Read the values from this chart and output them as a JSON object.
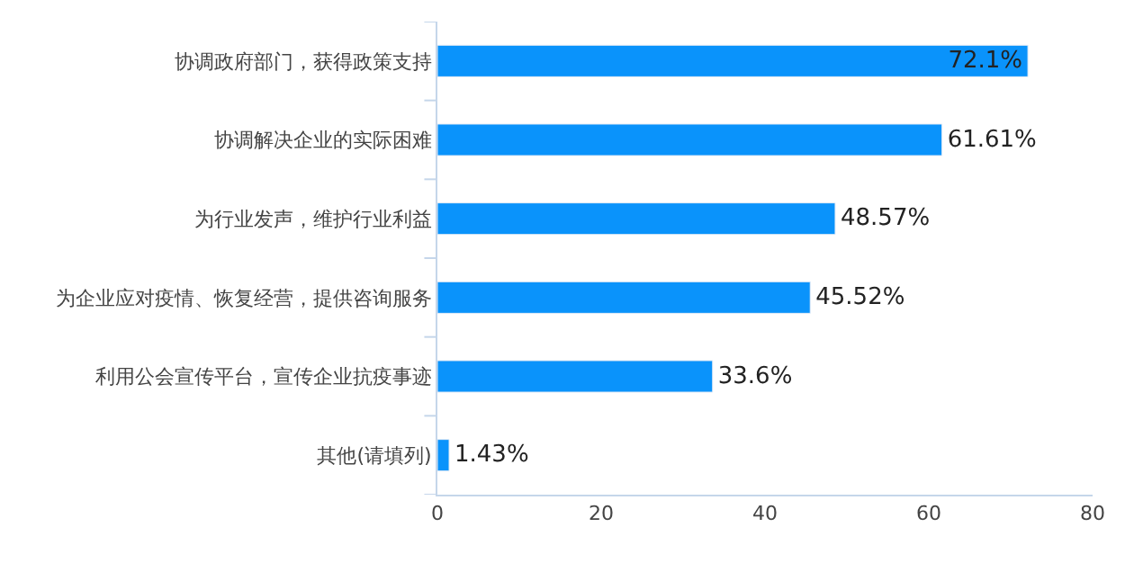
{
  "chart_data": {
    "type": "bar",
    "orientation": "horizontal",
    "categories": [
      "协调政府部门，获得政策支持",
      "协调解决企业的实际困难",
      "为行业发声，维护行业利益",
      "为企业应对疫情、恢复经营，提供咨询服务",
      "利用公会宣传平台，宣传企业抗疫事迹",
      "其他(请填列)"
    ],
    "values": [
      72.1,
      61.61,
      48.57,
      45.52,
      33.6,
      1.43
    ],
    "value_labels": [
      "72.1%",
      "61.61%",
      "48.57%",
      "45.52%",
      "33.6%",
      "1.43%"
    ],
    "color": "#0a93fb",
    "xlim": [
      0,
      80
    ],
    "xticks": [
      0,
      20,
      40,
      60,
      80
    ],
    "legend": false
  }
}
